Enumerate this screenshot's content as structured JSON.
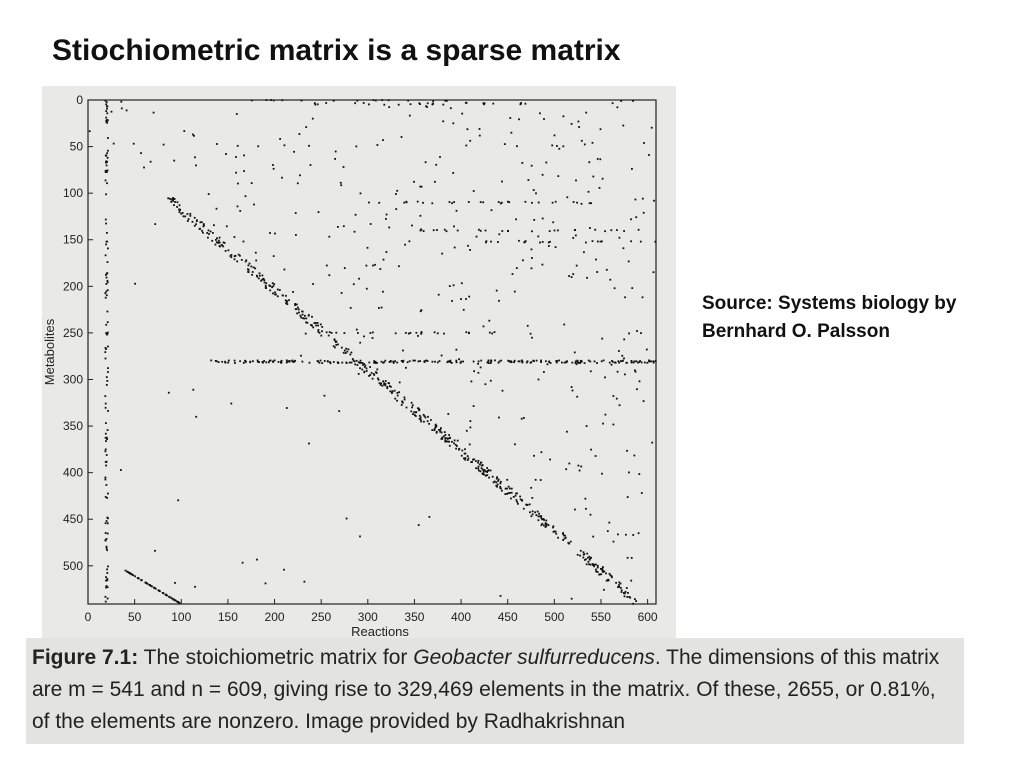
{
  "slide": {
    "title": "Stiochiometric matrix is a sparse matrix",
    "source_line1": "Source: Systems biology by",
    "source_line2": "Bernhard O. Palsson"
  },
  "caption": {
    "label": "Figure 7.1:",
    "text1": " The stoichiometric matrix for ",
    "species": "Geobacter sulfurreducens",
    "text2": ". The dimensions of this matrix are m = 541 and n = 609, giving rise to 329,469 elements in the matrix. Of these, 2655, or 0.81%, of the elements are nonzero. Image provided by Radhakrishnan"
  },
  "chart_data": {
    "type": "scatter",
    "title": "",
    "xlabel": "Reactions",
    "ylabel": "Metabolites",
    "xlim": [
      0,
      609
    ],
    "ylim": [
      541,
      0
    ],
    "xticks": [
      0,
      50,
      100,
      150,
      200,
      250,
      300,
      350,
      400,
      450,
      500,
      550,
      600
    ],
    "yticks": [
      0,
      50,
      100,
      150,
      200,
      250,
      300,
      350,
      400,
      450,
      500
    ],
    "grid": false,
    "marker_color": "#111111",
    "pattern": {
      "diagonal_main": {
        "x": [
          85,
          590
        ],
        "y": [
          105,
          540
        ]
      },
      "diagonal_low": {
        "x": [
          40,
          100
        ],
        "y": [
          505,
          541
        ]
      },
      "band_row": {
        "y": 281,
        "x": [
          130,
          609
        ]
      },
      "band_col": {
        "x": 20,
        "y": [
          0,
          541
        ]
      },
      "scattered_nonzeros": 2655
    }
  }
}
